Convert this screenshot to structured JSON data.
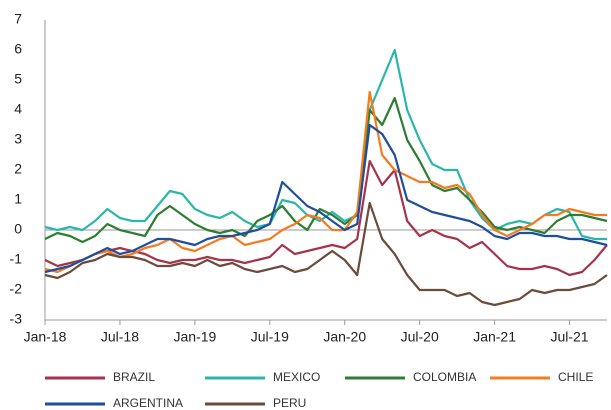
{
  "chart_data": {
    "type": "line",
    "categories": [
      "Jan-18",
      null,
      null,
      null,
      null,
      null,
      "Jul-18",
      null,
      null,
      null,
      null,
      null,
      "Jan-19",
      null,
      null,
      null,
      null,
      null,
      "Jul-19",
      null,
      null,
      null,
      null,
      null,
      "Jan-20",
      null,
      null,
      null,
      null,
      null,
      "Jul-20",
      null,
      null,
      null,
      null,
      null,
      "Jan-21",
      null,
      null,
      null,
      null,
      null,
      "Jul-21",
      null,
      null,
      null
    ],
    "ylim": [
      -3,
      7
    ],
    "yticks": [
      -3,
      -2,
      -1,
      0,
      1,
      2,
      3,
      4,
      5,
      6,
      7
    ],
    "series": [
      {
        "name": "BRAZIL",
        "color": "#a6334a",
        "values": [
          -1.0,
          -1.2,
          -1.1,
          -1.0,
          -0.8,
          -0.7,
          -0.6,
          -0.7,
          -0.8,
          -1.0,
          -1.1,
          -1.0,
          -1.0,
          -0.9,
          -1.0,
          -1.0,
          -1.1,
          -1.0,
          -0.9,
          -0.5,
          -0.8,
          -0.7,
          -0.6,
          -0.5,
          -0.6,
          -0.3,
          2.3,
          1.5,
          2.0,
          0.3,
          -0.2,
          0,
          -0.2,
          -0.3,
          -0.6,
          -0.4,
          -0.8,
          -1.2,
          -1.3,
          -1.3,
          -1.2,
          -1.3,
          -1.5,
          -1.4,
          -1.0,
          -0.5
        ]
      },
      {
        "name": "MEXICO",
        "color": "#2ab7a9",
        "values": [
          0.1,
          0,
          0.1,
          0,
          0.3,
          0.7,
          0.4,
          0.3,
          0.3,
          0.8,
          1.3,
          1.2,
          0.7,
          0.5,
          0.4,
          0.6,
          0.3,
          0.1,
          0.2,
          1.0,
          0.9,
          0.5,
          0.3,
          0.6,
          0.3,
          0.5,
          4.0,
          5.0,
          6.0,
          4.0,
          3.0,
          2.2,
          2.0,
          2.0,
          1.0,
          0.4,
          0,
          0.2,
          0.3,
          0.2,
          0.5,
          0.7,
          0.6,
          -0.2,
          -0.3,
          -0.3
        ]
      },
      {
        "name": "COLOMBIA",
        "color": "#2e7d32",
        "values": [
          -0.3,
          -0.1,
          -0.2,
          -0.4,
          -0.2,
          0.2,
          0,
          -0.1,
          -0.2,
          0.5,
          0.8,
          0.5,
          0.2,
          0,
          -0.1,
          0,
          -0.2,
          0.3,
          0.5,
          0.8,
          0.3,
          0,
          0.7,
          0.5,
          0.2,
          0.5,
          4.0,
          3.5,
          4.4,
          3.0,
          2.3,
          1.5,
          1.3,
          1.4,
          1.0,
          0.6,
          0.1,
          0,
          0.1,
          0,
          -0.1,
          0.3,
          0.5,
          0.5,
          0.4,
          0.3
        ]
      },
      {
        "name": "CHILE",
        "color": "#f47b20",
        "values": [
          -1.3,
          -1.4,
          -1.2,
          -1.0,
          -0.8,
          -0.7,
          -0.9,
          -0.8,
          -0.6,
          -0.5,
          -0.3,
          -0.6,
          -0.7,
          -0.5,
          -0.3,
          -0.2,
          -0.5,
          -0.4,
          -0.3,
          0,
          0.2,
          0.5,
          0.4,
          0,
          0,
          0.6,
          4.6,
          2.5,
          2.0,
          1.8,
          1.6,
          1.6,
          1.4,
          1.5,
          1.2,
          0.5,
          0,
          -0.2,
          0,
          0.2,
          0.5,
          0.5,
          0.7,
          0.6,
          0.5,
          0.5
        ]
      },
      {
        "name": "ARGENTINA",
        "color": "#1f4e9c",
        "values": [
          -1.4,
          -1.3,
          -1.2,
          -1.0,
          -0.8,
          -0.6,
          -0.8,
          -0.7,
          -0.5,
          -0.3,
          -0.3,
          -0.4,
          -0.5,
          -0.3,
          -0.2,
          -0.2,
          -0.1,
          0,
          0.2,
          1.6,
          1.2,
          0.8,
          0.6,
          0.3,
          0,
          0.2,
          3.5,
          3.2,
          2.5,
          1.0,
          0.8,
          0.6,
          0.5,
          0.4,
          0.3,
          0.1,
          -0.2,
          -0.3,
          -0.1,
          -0.1,
          -0.2,
          -0.2,
          -0.3,
          -0.3,
          -0.4,
          -0.5
        ]
      },
      {
        "name": "PERU",
        "color": "#6b4c3b",
        "values": [
          -1.5,
          -1.6,
          -1.4,
          -1.1,
          -1.0,
          -0.8,
          -0.9,
          -0.9,
          -1.0,
          -1.2,
          -1.2,
          -1.1,
          -1.2,
          -1.0,
          -1.2,
          -1.1,
          -1.3,
          -1.4,
          -1.3,
          -1.2,
          -1.4,
          -1.3,
          -1.0,
          -0.7,
          -1.0,
          -1.5,
          0.9,
          -0.3,
          -0.8,
          -1.5,
          -2.0,
          -2.0,
          -2.0,
          -2.2,
          -2.1,
          -2.4,
          -2.5,
          -2.4,
          -2.3,
          -2.0,
          -2.1,
          -2.0,
          -2.0,
          -1.9,
          -1.8,
          -1.5
        ]
      }
    ]
  }
}
